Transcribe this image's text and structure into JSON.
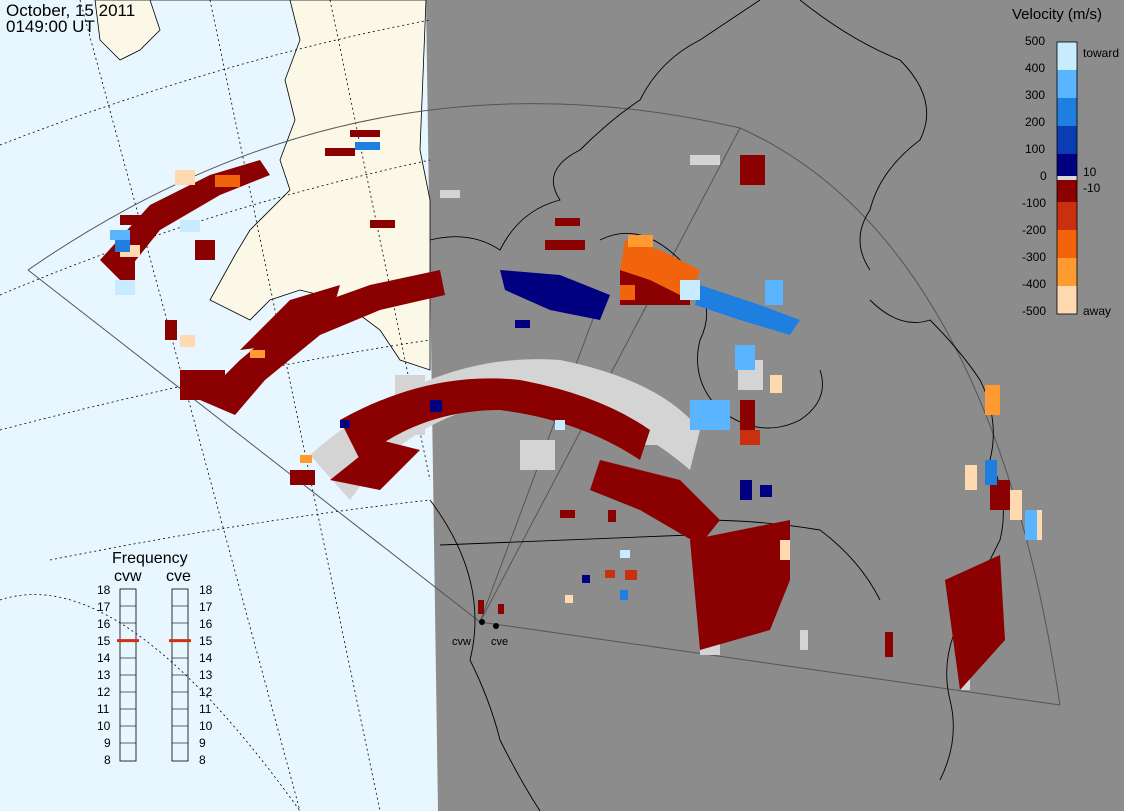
{
  "header": {
    "date": "October, 15 2011",
    "time": "0149:00 UT"
  },
  "velocity_legend": {
    "title": "Velocity (m/s)",
    "ticks": [
      "500",
      "400",
      "300",
      "200",
      "100",
      "0",
      "-100",
      "-200",
      "-300",
      "-400",
      "-500"
    ],
    "inner_ticks": [
      "10",
      "-10"
    ],
    "toward_label": "toward",
    "away_label": "away",
    "colors": [
      "#ffd9b0",
      "#ff9a30",
      "#f2640c",
      "#c83010",
      "#8b0000",
      "#d9d9d9",
      "#000080",
      "#0a3cb4",
      "#1e7fe0",
      "#5ab4ff",
      "#c8ecff"
    ]
  },
  "frequency_panel": {
    "title": "Frequency",
    "radars": [
      {
        "code": "cvw",
        "value_mhz": 15
      },
      {
        "code": "cve",
        "value_mhz": 15
      }
    ],
    "scale_left": [
      "18",
      "17",
      "16",
      "15",
      "14",
      "13",
      "12",
      "11",
      "10",
      "9",
      "8"
    ],
    "scale_right": [
      "18",
      "17",
      "16",
      "15",
      "14",
      "13",
      "12",
      "11",
      "10",
      "9",
      "8"
    ]
  },
  "radar_sites": [
    {
      "code": "cvw"
    },
    {
      "code": "cve"
    }
  ],
  "colors": {
    "night_side": "#8c8c8c",
    "day_ocean": "#e8f6ff",
    "day_land": "#fbf8e8",
    "ground_scatter": "#d4d4d4",
    "frequency_marker": "#d03010"
  }
}
